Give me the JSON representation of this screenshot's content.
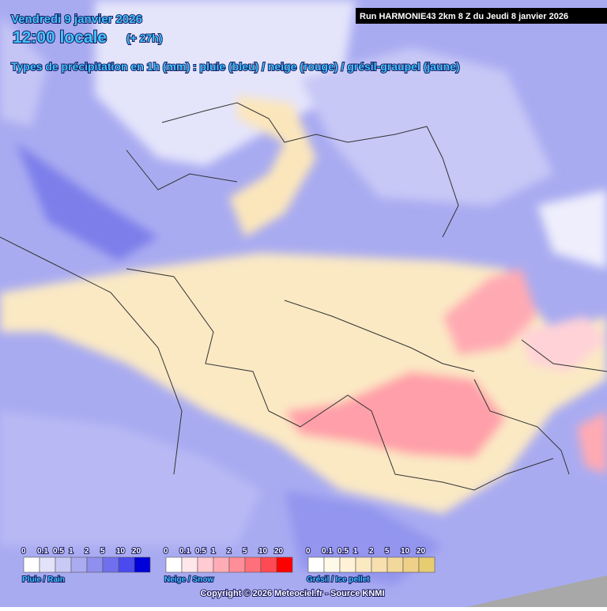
{
  "header": {
    "date": "Vendredi 9 janvier 2026",
    "time": "12:00 locale",
    "lead": "(+ 27h)",
    "subtitle": "Types de précipitation en 1h (mm) : pluie (bleu) / neige (rouge) / grésil-graupel (jaune)",
    "run": "Run HARMONIE43 2km 8 Z du Jeudi 8 janvier 2026"
  },
  "legends": [
    {
      "label": "Pluie / Rain",
      "ticks": [
        "0",
        "0.1",
        "0.5",
        "1",
        "2",
        "5",
        "10",
        "20"
      ],
      "colors": [
        "#ffffff",
        "#e2e2fb",
        "#c9c9f6",
        "#ababf2",
        "#8f8ff0",
        "#7070ee",
        "#4a4aee",
        "#0000d8"
      ]
    },
    {
      "label": "Neige / Snow",
      "ticks": [
        "0",
        "0.1",
        "0.5",
        "1",
        "2",
        "5",
        "10",
        "20"
      ],
      "colors": [
        "#ffffff",
        "#ffe6ea",
        "#ffcad2",
        "#ffacb6",
        "#ff8e98",
        "#ff707a",
        "#ff4a54",
        "#ff0000"
      ]
    },
    {
      "label": "Grésil / Ice pellet",
      "ticks": [
        "0",
        "0.1",
        "0.5",
        "1",
        "2",
        "5",
        "10",
        "20"
      ],
      "colors": [
        "#ffffff",
        "#fff9e8",
        "#fff2d6",
        "#fbe9c2",
        "#f7e0ae",
        "#f2d89b",
        "#eed088",
        "#e8cc72"
      ]
    }
  ],
  "footer": {
    "copyright": "Copyright © 2026 Meteociel.fr - Source KNMI"
  }
}
